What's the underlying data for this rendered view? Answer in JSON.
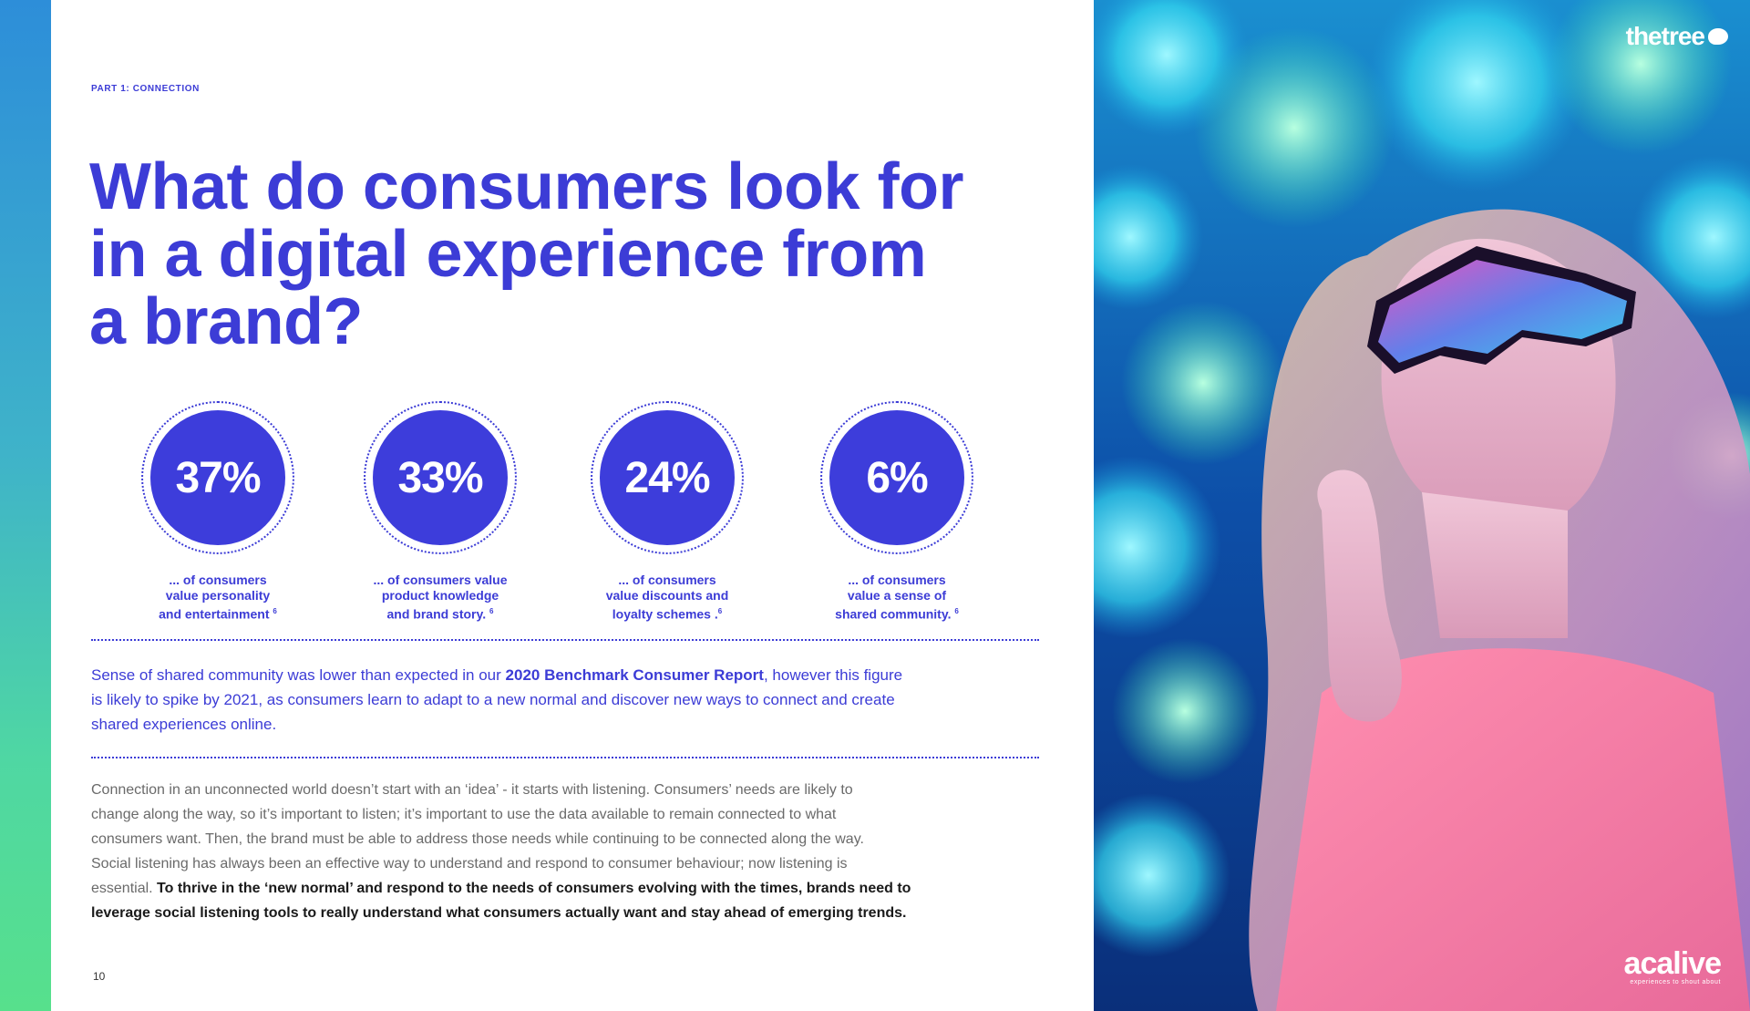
{
  "eyebrow": "PART 1: CONNECTION",
  "headline": [
    "What do consumers look for",
    "in a digital experience from",
    "a brand?"
  ],
  "stats": [
    {
      "value": "37%",
      "caption": [
        "... of consumers",
        "value personality",
        "and entertainment"
      ],
      "footnote": "6"
    },
    {
      "value": "33%",
      "caption": [
        "... of consumers value",
        "product knowledge",
        "and brand story."
      ],
      "footnote": "6"
    },
    {
      "value": "24%",
      "caption": [
        "... of consumers",
        "value discounts and",
        "loyalty schemes ."
      ],
      "footnote": "6"
    },
    {
      "value": "6%",
      "caption": [
        "... of consumers",
        "value a sense of",
        "shared community."
      ],
      "footnote": "6"
    }
  ],
  "highlight": {
    "line1_pre": "Sense of shared community was lower than expected in our ",
    "line1_bold": "2020 Benchmark Consumer Report",
    "line1_post": ", however this figure",
    "line2": "is likely to spike by 2021, as consumers learn to adapt to a new normal and discover new ways to connect and create",
    "line3": "shared experiences online."
  },
  "body": {
    "lines": [
      "Connection in an unconnected world doesn’t start with an ‘idea’ - it starts with listening. Consumers’ needs are likely to",
      "change along the way, so it’s important to listen; it’s important to use the data available to remain connected to what",
      "consumers want. Then, the brand must be able to address those needs while continuing to be connected along the way.",
      "Social listening has always been an effective way to understand and respond to consumer behaviour; now listening is"
    ],
    "line5_plain": "essential. ",
    "line5_bold": "To thrive in the ‘new normal’ and respond to the needs of consumers evolving with the times, brands need to",
    "line6_bold": "leverage social listening tools to really understand what consumers actually want and stay ahead of emerging trends."
  },
  "page_number": "10",
  "brand_top": "thetree",
  "brand_bottom": {
    "logo": "acalive",
    "tagline": "experiences to shout about"
  },
  "colors": {
    "accent": "#3c3cd6",
    "disc": "#3d3ddb",
    "strip_top": "#2d8ed9",
    "strip_bottom": "#57e08c"
  }
}
